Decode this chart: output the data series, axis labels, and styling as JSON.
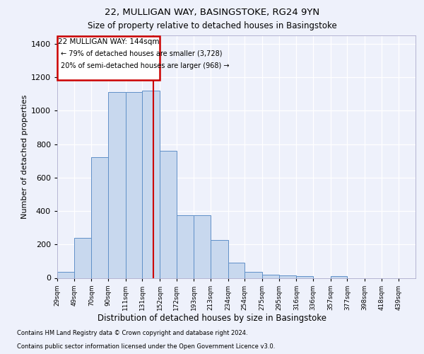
{
  "title1": "22, MULLIGAN WAY, BASINGSTOKE, RG24 9YN",
  "title2": "Size of property relative to detached houses in Basingstoke",
  "xlabel": "Distribution of detached houses by size in Basingstoke",
  "ylabel": "Number of detached properties",
  "footnote1": "Contains HM Land Registry data © Crown copyright and database right 2024.",
  "footnote2": "Contains public sector information licensed under the Open Government Licence v3.0.",
  "annotation_line1": "22 MULLIGAN WAY: 144sqm",
  "annotation_line2": "← 79% of detached houses are smaller (3,728)",
  "annotation_line3": "20% of semi-detached houses are larger (968) →",
  "red_line_x": 144,
  "bar_color": "#c8d8ee",
  "bar_edge_color": "#6090c8",
  "red_line_color": "#cc0000",
  "annotation_box_edge_color": "#cc0000",
  "background_color": "#eef1fb",
  "plot_bg_color": "#eef1fb",
  "categories": [
    "29sqm",
    "49sqm",
    "70sqm",
    "90sqm",
    "111sqm",
    "131sqm",
    "152sqm",
    "172sqm",
    "193sqm",
    "213sqm",
    "234sqm",
    "254sqm",
    "275sqm",
    "295sqm",
    "316sqm",
    "336sqm",
    "357sqm",
    "377sqm",
    "398sqm",
    "418sqm",
    "439sqm"
  ],
  "bin_edges": [
    29,
    49,
    70,
    90,
    111,
    131,
    152,
    172,
    193,
    213,
    234,
    254,
    275,
    295,
    316,
    336,
    357,
    377,
    398,
    418,
    439,
    459
  ],
  "values": [
    35,
    240,
    720,
    1110,
    1110,
    1120,
    760,
    375,
    375,
    225,
    90,
    35,
    20,
    15,
    10,
    0,
    10,
    0,
    0,
    0,
    0
  ],
  "ylim": [
    0,
    1450
  ],
  "yticks": [
    0,
    200,
    400,
    600,
    800,
    1000,
    1200,
    1400
  ]
}
